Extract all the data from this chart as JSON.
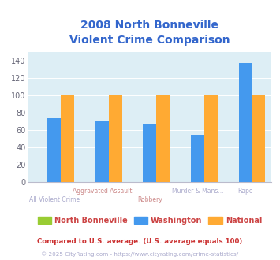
{
  "title_line1": "2008 North Bonneville",
  "title_line2": "Violent Crime Comparison",
  "categories": [
    "All Violent Crime",
    "Aggravated Assault",
    "Robbery",
    "Murder & Mans...",
    "Rape"
  ],
  "cat_row1": [
    "",
    "Aggravated Assault",
    "",
    "Murder & Mans...",
    "Rape"
  ],
  "cat_row2": [
    "All Violent Crime",
    "",
    "Robbery",
    "",
    ""
  ],
  "cat_row1_color": [
    "#aaaacc",
    "#aaaacc",
    "#aaaacc",
    "#aaaacc",
    "#aaaacc"
  ],
  "cat_row2_color": [
    "#aaaacc",
    "#aaaacc",
    "#cc8888",
    "#aaaacc",
    "#aaaacc"
  ],
  "series_names": [
    "North Bonneville",
    "Washington",
    "National"
  ],
  "series_values": [
    [
      0,
      0,
      0,
      0,
      0
    ],
    [
      74,
      70,
      67,
      55,
      137
    ],
    [
      100,
      100,
      100,
      100,
      100
    ]
  ],
  "colors": [
    "#99cc33",
    "#4499ee",
    "#ffaa33"
  ],
  "ylim": [
    0,
    150
  ],
  "yticks": [
    0,
    20,
    40,
    60,
    80,
    100,
    120,
    140
  ],
  "background_color": "#ffffff",
  "plot_bg_color": "#ddeef5",
  "title_color": "#3366cc",
  "axis_label_color": "#aaaacc",
  "axis_label_color2": "#cc8888",
  "legend_label_color": "#cc4444",
  "footnote1": "Compared to U.S. average. (U.S. average equals 100)",
  "footnote2": "© 2025 CityRating.com - https://www.cityrating.com/crime-statistics/",
  "footnote1_color": "#cc3333",
  "footnote2_color": "#aaaacc",
  "bar_width": 0.28
}
